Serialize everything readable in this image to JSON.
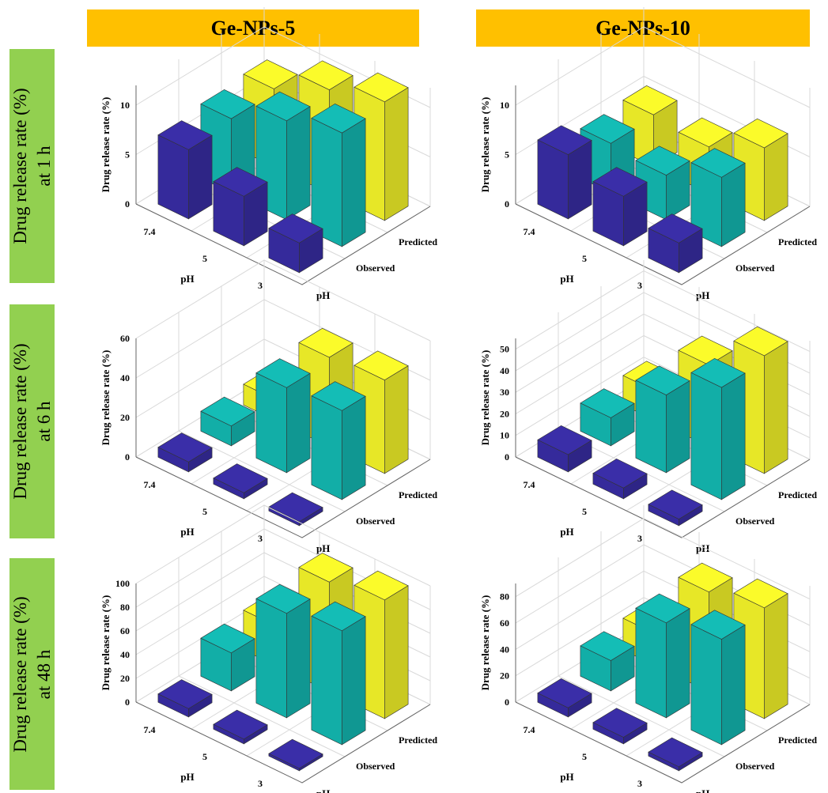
{
  "colors": {
    "ph_7_4": "#3a2ea8",
    "ph_5": "#14bdb6",
    "ph_3": "#fbfb2a",
    "grid": "#d9d9d9",
    "edge": "#333333"
  },
  "column_headers": [
    "Ge-NPs-5",
    "Ge-NPs-10"
  ],
  "row_headers": [
    {
      "line1": "Drug release rate (%)",
      "line2": "at 1 h"
    },
    {
      "line1": "Drug release rate (%)",
      "line2": "at 6 h"
    },
    {
      "line1": "Drug release rate (%)",
      "line2": "at 48 h"
    }
  ],
  "chart_data": [
    {
      "type": "bar3d",
      "formulation": "Ge-NPs-5",
      "time": "1 h",
      "zlabel": "Drug release rate (%)",
      "xlabel": "pH",
      "ylabel": "pH",
      "x_ticks": [
        "7.4",
        "5",
        "3"
      ],
      "y_ticks": [
        "Observed",
        "Predicted"
      ],
      "z_ticks": [
        0,
        5,
        10
      ],
      "zlim": [
        0,
        12
      ],
      "series": [
        {
          "name": "Observed",
          "values": [
            7,
            5,
            3,
            7.5,
            10,
            11.5
          ]
        }
      ]
    },
    {
      "type": "bar3d",
      "formulation": "Ge-NPs-10",
      "time": "1 h",
      "zlabel": "Drug release rate (%)",
      "xlabel": "pH",
      "ylabel": "pH",
      "x_ticks": [
        "7.4",
        "5",
        "3"
      ],
      "y_ticks": [
        "Observed",
        "Predicted"
      ],
      "z_ticks": [
        0,
        5,
        10
      ],
      "zlim": [
        0,
        12
      ],
      "series": [
        {
          "name": "Observed",
          "values": [
            6.5,
            5,
            3,
            5,
            4.5,
            7
          ]
        }
      ]
    },
    {
      "type": "bar3d",
      "formulation": "Ge-NPs-5",
      "time": "6 h",
      "zlabel": "Drug release rate (%)",
      "xlabel": "pH",
      "ylabel": "pH",
      "x_ticks": [
        "7.4",
        "5",
        "3"
      ],
      "y_ticks": [
        "Observed",
        "Predicted"
      ],
      "z_ticks": [
        0,
        20,
        40,
        60
      ],
      "zlim": [
        0,
        60
      ],
      "series": [
        {
          "name": "Observed",
          "values": [
            5,
            3,
            2,
            10,
            43,
            45
          ]
        }
      ]
    },
    {
      "type": "bar3d",
      "formulation": "Ge-NPs-10",
      "time": "6 h",
      "zlabel": "Drug release rate (%)",
      "xlabel": "pH",
      "ylabel": "pH",
      "x_ticks": [
        "7.4",
        "5",
        "3"
      ],
      "y_ticks": [
        "Observed",
        "Predicted"
      ],
      "z_ticks": [
        0,
        10,
        20,
        30,
        40,
        50
      ],
      "zlim": [
        0,
        55
      ],
      "series": [
        {
          "name": "Observed",
          "values": [
            8,
            5,
            3,
            13,
            36,
            52
          ]
        }
      ]
    },
    {
      "type": "bar3d",
      "formulation": "Ge-NPs-5",
      "time": "48 h",
      "zlabel": "Drug release rate (%)",
      "xlabel": "pH",
      "ylabel": "pH",
      "x_ticks": [
        "7.4",
        "5",
        "3"
      ],
      "y_ticks": [
        "Observed",
        "Predicted"
      ],
      "z_ticks": [
        0,
        20,
        40,
        60,
        80,
        100
      ],
      "zlim": [
        0,
        100
      ],
      "series": [
        {
          "name": "Observed",
          "values": [
            7,
            4,
            2,
            32,
            88,
            96
          ]
        }
      ]
    },
    {
      "type": "bar3d",
      "formulation": "Ge-NPs-10",
      "time": "48 h",
      "zlabel": "Drug release rate (%)",
      "xlabel": "pH",
      "ylabel": "pH",
      "x_ticks": [
        "7.4",
        "5",
        "3"
      ],
      "y_ticks": [
        "Observed",
        "Predicted"
      ],
      "z_ticks": [
        0,
        20,
        40,
        60,
        80
      ],
      "zlim": [
        0,
        90
      ],
      "series": [
        {
          "name": "Observed",
          "values": [
            7,
            5,
            3,
            23,
            72,
            80
          ]
        }
      ]
    }
  ]
}
